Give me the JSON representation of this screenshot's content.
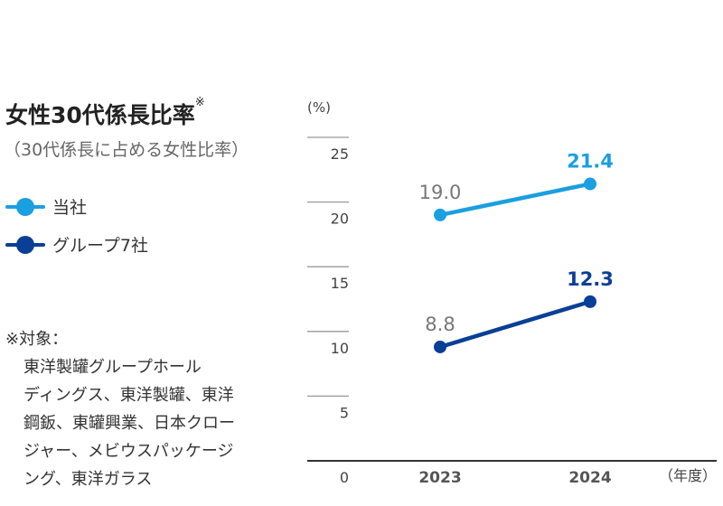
{
  "title": "女性30代係長比率",
  "title_mark": "※",
  "subtitle": "（30代係長に占める女性比率）",
  "note": {
    "heading": "※対象：",
    "lines": [
      "東洋製罐グループホール",
      "ディングス、東洋製罐、東洋",
      "鋼鈑、東罐興業、日本クロー",
      "ジャー、メビウスパッケージ",
      "ング、東洋ガラス"
    ]
  },
  "chart_data": {
    "type": "line",
    "ylabel": "(%)",
    "xlabel": "（年度）",
    "categories": [
      "2023",
      "2024"
    ],
    "ylim": [
      0,
      25
    ],
    "yticks": [
      "0",
      "5",
      "10",
      "15",
      "20",
      "25"
    ],
    "grid": true,
    "legend": "left",
    "series": [
      {
        "name": "当社",
        "values": [
          19.0,
          21.4
        ],
        "labels": [
          "19.0",
          "21.4"
        ],
        "color": "#1a9fe0"
      },
      {
        "name": "グループ7社",
        "values": [
          8.8,
          12.3
        ],
        "labels": [
          "8.8",
          "12.3"
        ],
        "color": "#0a3f96"
      }
    ],
    "label_color_previous": "#777777"
  }
}
